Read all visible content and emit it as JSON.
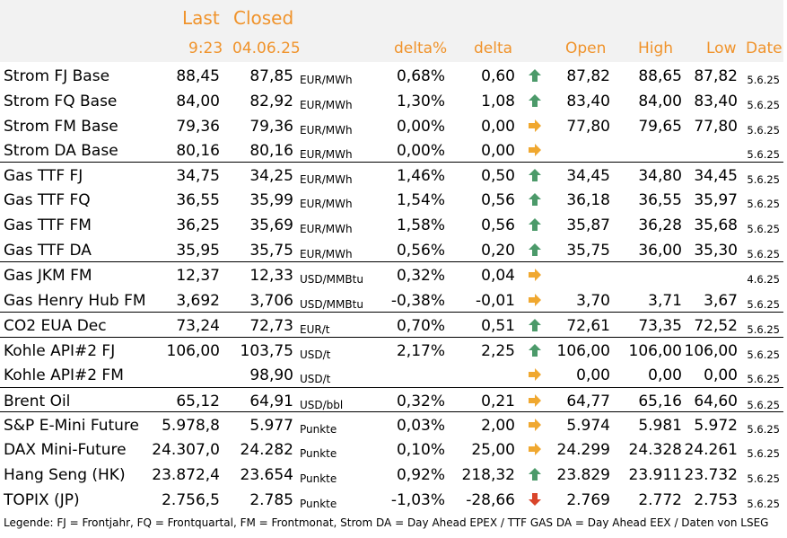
{
  "header": {
    "last": "Last",
    "closed": "Closed",
    "last_time": "9:23",
    "closed_date": "04.06.25",
    "delta_pct": "delta%",
    "delta": "delta",
    "open": "Open",
    "high": "High",
    "low": "Low",
    "date": "Date"
  },
  "colors": {
    "header_text": "#f0932b",
    "arrow_up": "#4c9a6a",
    "arrow_flat": "#f0a830",
    "arrow_down": "#d9452b"
  },
  "rows": [
    {
      "name": "Strom FJ Base",
      "last": "88,45",
      "closed": "87,85",
      "unit": "EUR/MWh",
      "dpct": "0,68%",
      "delta": "0,60",
      "arrow": "up",
      "open": "87,82",
      "high": "88,65",
      "low": "87,82",
      "date": "5.6.25",
      "sep": false
    },
    {
      "name": "Strom FQ Base",
      "last": "84,00",
      "closed": "82,92",
      "unit": "EUR/MWh",
      "dpct": "1,30%",
      "delta": "1,08",
      "arrow": "up",
      "open": "83,40",
      "high": "84,00",
      "low": "83,40",
      "date": "5.6.25",
      "sep": false
    },
    {
      "name": "Strom FM Base",
      "last": "79,36",
      "closed": "79,36",
      "unit": "EUR/MWh",
      "dpct": "0,00%",
      "delta": "0,00",
      "arrow": "flat",
      "open": "77,80",
      "high": "79,65",
      "low": "77,80",
      "date": "5.6.25",
      "sep": false
    },
    {
      "name": "Strom DA Base",
      "last": "80,16",
      "closed": "80,16",
      "unit": "EUR/MWh",
      "dpct": "0,00%",
      "delta": "0,00",
      "arrow": "flat",
      "open": "",
      "high": "",
      "low": "",
      "date": "5.6.25",
      "sep": false
    },
    {
      "name": "Gas TTF FJ",
      "last": "34,75",
      "closed": "34,25",
      "unit": "EUR/MWh",
      "dpct": "1,46%",
      "delta": "0,50",
      "arrow": "up",
      "open": "34,45",
      "high": "34,80",
      "low": "34,45",
      "date": "5.6.25",
      "sep": true
    },
    {
      "name": "Gas TTF FQ",
      "last": "36,55",
      "closed": "35,99",
      "unit": "EUR/MWh",
      "dpct": "1,54%",
      "delta": "0,56",
      "arrow": "up",
      "open": "36,18",
      "high": "36,55",
      "low": "35,97",
      "date": "5.6.25",
      "sep": false
    },
    {
      "name": "Gas TTF FM",
      "last": "36,25",
      "closed": "35,69",
      "unit": "EUR/MWh",
      "dpct": "1,58%",
      "delta": "0,56",
      "arrow": "up",
      "open": "35,87",
      "high": "36,28",
      "low": "35,68",
      "date": "5.6.25",
      "sep": false
    },
    {
      "name": "Gas TTF DA",
      "last": "35,95",
      "closed": "35,75",
      "unit": "EUR/MWh",
      "dpct": "0,56%",
      "delta": "0,20",
      "arrow": "up",
      "open": "35,75",
      "high": "36,00",
      "low": "35,30",
      "date": "5.6.25",
      "sep": false
    },
    {
      "name": "Gas JKM FM",
      "last": "12,37",
      "closed": "12,33",
      "unit": "USD/MMBtu",
      "dpct": "0,32%",
      "delta": "0,04",
      "arrow": "flat",
      "open": "",
      "high": "",
      "low": "",
      "date": "4.6.25",
      "sep": true
    },
    {
      "name": "Gas Henry Hub FM",
      "last": "3,692",
      "closed": "3,706",
      "unit": "USD/MMBtu",
      "dpct": "-0,38%",
      "delta": "-0,01",
      "arrow": "flat",
      "open": "3,70",
      "high": "3,71",
      "low": "3,67",
      "date": "5.6.25",
      "sep": false
    },
    {
      "name": "CO2 EUA Dec",
      "last": "73,24",
      "closed": "72,73",
      "unit": "EUR/t",
      "dpct": "0,70%",
      "delta": "0,51",
      "arrow": "up",
      "open": "72,61",
      "high": "73,35",
      "low": "72,52",
      "date": "5.6.25",
      "sep": true
    },
    {
      "name": "Kohle API#2 FJ",
      "last": "106,00",
      "closed": "103,75",
      "unit": "USD/t",
      "dpct": "2,17%",
      "delta": "2,25",
      "arrow": "up",
      "open": "106,00",
      "high": "106,00",
      "low": "106,00",
      "date": "5.6.25",
      "sep": true
    },
    {
      "name": "Kohle API#2 FM",
      "last": "",
      "closed": "98,90",
      "unit": "USD/t",
      "dpct": "",
      "delta": "",
      "arrow": "flat",
      "open": "0,00",
      "high": "0,00",
      "low": "0,00",
      "date": "5.6.25",
      "sep": false
    },
    {
      "name": "Brent Oil",
      "last": "65,12",
      "closed": "64,91",
      "unit": "USD/bbl",
      "dpct": "0,32%",
      "delta": "0,21",
      "arrow": "flat",
      "open": "64,77",
      "high": "65,16",
      "low": "64,60",
      "date": "5.6.25",
      "sep": true
    },
    {
      "name": "S&P E-Mini Future",
      "last": "5.978,8",
      "closed": "5.977",
      "unit": "Punkte",
      "dpct": "0,03%",
      "delta": "2,00",
      "arrow": "flat",
      "open": "5.974",
      "high": "5.981",
      "low": "5.972",
      "date": "5.6.25",
      "sep": true
    },
    {
      "name": "DAX Mini-Future",
      "last": "24.307,0",
      "closed": "24.282",
      "unit": "Punkte",
      "dpct": "0,10%",
      "delta": "25,00",
      "arrow": "flat",
      "open": "24.299",
      "high": "24.328",
      "low": "24.261",
      "date": "5.6.25",
      "sep": false
    },
    {
      "name": "Hang Seng (HK)",
      "last": "23.872,4",
      "closed": "23.654",
      "unit": "Punkte",
      "dpct": "0,92%",
      "delta": "218,32",
      "arrow": "up",
      "open": "23.829",
      "high": "23.911",
      "low": "23.732",
      "date": "5.6.25",
      "sep": false
    },
    {
      "name": "TOPIX (JP)",
      "last": "2.756,5",
      "closed": "2.785",
      "unit": "Punkte",
      "dpct": "-1,03%",
      "delta": "-28,66",
      "arrow": "down",
      "open": "2.769",
      "high": "2.772",
      "low": "2.753",
      "date": "5.6.25",
      "sep": false
    }
  ],
  "legend": "Legende: FJ = Frontjahr, FQ = Frontquartal, FM = Frontmonat, Strom DA = Day Ahead EPEX / TTF GAS DA = Day Ahead EEX / Daten von LSEG"
}
